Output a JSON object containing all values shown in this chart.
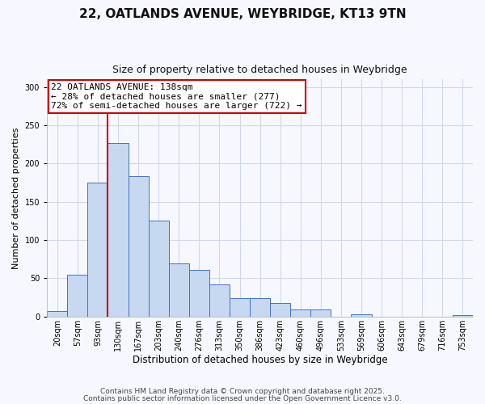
{
  "title": "22, OATLANDS AVENUE, WEYBRIDGE, KT13 9TN",
  "subtitle": "Size of property relative to detached houses in Weybridge",
  "xlabel": "Distribution of detached houses by size in Weybridge",
  "ylabel": "Number of detached properties",
  "bar_labels": [
    "20sqm",
    "57sqm",
    "93sqm",
    "130sqm",
    "167sqm",
    "203sqm",
    "240sqm",
    "276sqm",
    "313sqm",
    "350sqm",
    "386sqm",
    "423sqm",
    "460sqm",
    "496sqm",
    "533sqm",
    "569sqm",
    "606sqm",
    "643sqm",
    "679sqm",
    "716sqm",
    "753sqm"
  ],
  "bar_values": [
    7,
    55,
    175,
    227,
    184,
    125,
    70,
    61,
    42,
    24,
    24,
    18,
    9,
    9,
    0,
    3,
    0,
    0,
    0,
    0,
    2
  ],
  "bar_color": "#c6d9f0",
  "bar_edge_color": "#4472c4",
  "grid_color": "#d0d8e8",
  "vline_x": 3.0,
  "vline_color": "#cc0000",
  "annotation_box_text": "22 OATLANDS AVENUE: 138sqm\n← 28% of detached houses are smaller (277)\n72% of semi-detached houses are larger (722) →",
  "annotation_box_color": "#cc0000",
  "annotation_box_facecolor": "#ffffff",
  "ylim": [
    0,
    310
  ],
  "yticks": [
    0,
    50,
    100,
    150,
    200,
    250,
    300
  ],
  "footer_line1": "Contains HM Land Registry data © Crown copyright and database right 2025.",
  "footer_line2": "Contains public sector information licensed under the Open Government Licence v3.0.",
  "bg_color": "#f7f8ff",
  "title_fontsize": 11,
  "subtitle_fontsize": 9,
  "xlabel_fontsize": 8.5,
  "ylabel_fontsize": 8,
  "tick_fontsize": 7,
  "annotation_fontsize": 8
}
